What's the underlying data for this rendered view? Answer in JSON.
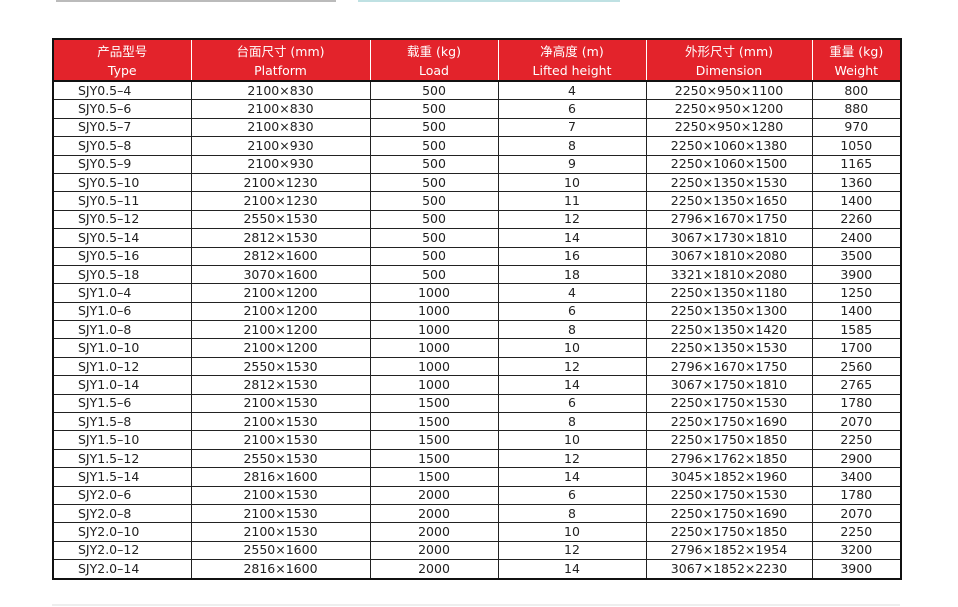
{
  "table": {
    "header": [
      [
        "产品型号",
        "台面尺寸 (mm)",
        "载重 (kg)",
        "净高度 (m)",
        "外形尺寸 (mm)",
        "重量 (kg)"
      ],
      [
        "Type",
        "Platform",
        "Load",
        "Lifted height",
        "Dimension",
        "Weight"
      ]
    ],
    "rows": [
      [
        "SJY0.5–4",
        "2100×830",
        500,
        4,
        "2250×950×1100",
        800
      ],
      [
        "SJY0.5–6",
        "2100×830",
        500,
        6,
        "2250×950×1200",
        880
      ],
      [
        "SJY0.5–7",
        "2100×830",
        500,
        7,
        "2250×950×1280",
        970
      ],
      [
        "SJY0.5–8",
        "2100×930",
        500,
        8,
        "2250×1060×1380",
        1050
      ],
      [
        "SJY0.5–9",
        "2100×930",
        500,
        9,
        "2250×1060×1500",
        1165
      ],
      [
        "SJY0.5–10",
        "2100×1230",
        500,
        10,
        "2250×1350×1530",
        1360
      ],
      [
        "SJY0.5–11",
        "2100×1230",
        500,
        11,
        "2250×1350×1650",
        1400
      ],
      [
        "SJY0.5–12",
        "2550×1530",
        500,
        12,
        "2796×1670×1750",
        2260
      ],
      [
        "SJY0.5–14",
        "2812×1530",
        500,
        14,
        "3067×1730×1810",
        2400
      ],
      [
        "SJY0.5–16",
        "2812×1600",
        500,
        16,
        "3067×1810×2080",
        3500
      ],
      [
        "SJY0.5–18",
        "3070×1600",
        500,
        18,
        "3321×1810×2080",
        3900
      ],
      [
        "SJY1.0–4",
        "2100×1200",
        1000,
        4,
        "2250×1350×1180",
        1250
      ],
      [
        "SJY1.0–6",
        "2100×1200",
        1000,
        6,
        "2250×1350×1300",
        1400
      ],
      [
        "SJY1.0–8",
        "2100×1200",
        1000,
        8,
        "2250×1350×1420",
        1585
      ],
      [
        "SJY1.0–10",
        "2100×1200",
        1000,
        10,
        "2250×1350×1530",
        1700
      ],
      [
        "SJY1.0–12",
        "2550×1530",
        1000,
        12,
        "2796×1670×1750",
        2560
      ],
      [
        "SJY1.0–14",
        "2812×1530",
        1000,
        14,
        "3067×1750×1810",
        2765
      ],
      [
        "SJY1.5–6",
        "2100×1530",
        1500,
        6,
        "2250×1750×1530",
        1780
      ],
      [
        "SJY1.5–8",
        "2100×1530",
        1500,
        8,
        "2250×1750×1690",
        2070
      ],
      [
        "SJY1.5–10",
        "2100×1530",
        1500,
        10,
        "2250×1750×1850",
        2250
      ],
      [
        "SJY1.5–12",
        "2550×1530",
        1500,
        12,
        "2796×1762×1850",
        2900
      ],
      [
        "SJY1.5–14",
        "2816×1600",
        1500,
        14,
        "3045×1852×1960",
        3400
      ],
      [
        "SJY2.0–6",
        "2100×1530",
        2000,
        6,
        "2250×1750×1530",
        1780
      ],
      [
        "SJY2.0–8",
        "2100×1530",
        2000,
        8,
        "2250×1750×1690",
        2070
      ],
      [
        "SJY2.0–10",
        "2100×1530",
        2000,
        10,
        "2250×1750×1850",
        2250
      ],
      [
        "SJY2.0–12",
        "2550×1600",
        2000,
        12,
        "2796×1852×1954",
        3200
      ],
      [
        "SJY2.0–14",
        "2816×1600",
        2000,
        14,
        "3067×1852×2230",
        3900
      ]
    ]
  }
}
